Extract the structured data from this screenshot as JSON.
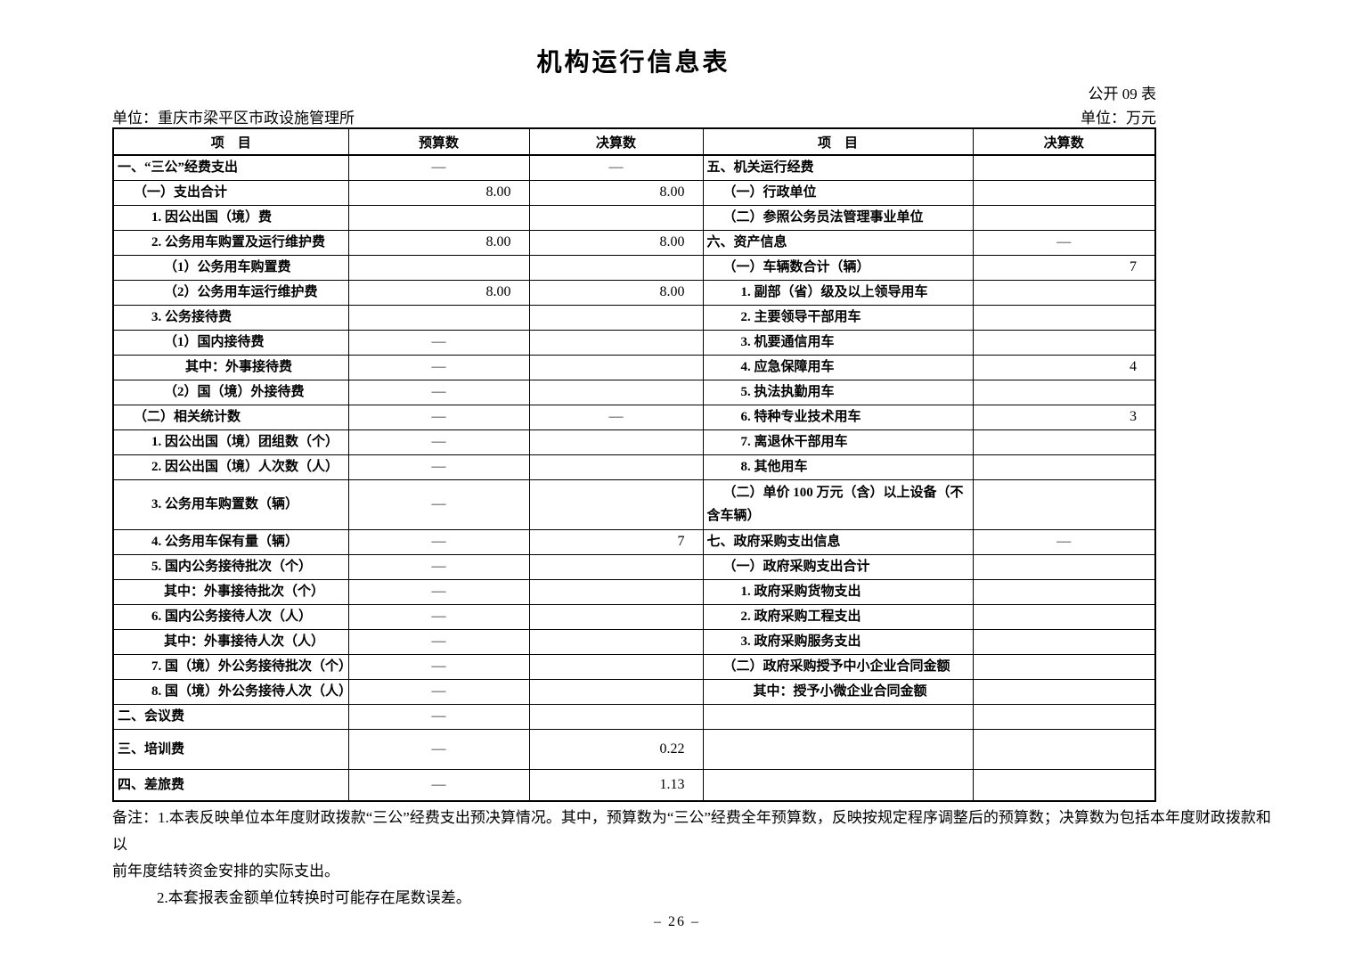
{
  "page": {
    "title": "机构运行信息表",
    "table_code": "公开 09 表",
    "unit_left": "单位：重庆市梁平区市政设施管理所",
    "unit_right": "单位：万元",
    "page_number": "– 26 –"
  },
  "colors": {
    "ink": "#000000",
    "background": "#ffffff",
    "border": "#000000"
  },
  "table": {
    "headers": [
      "项　目",
      "预算数",
      "决算数",
      "项　目",
      "决算数"
    ],
    "rows": [
      {
        "l": "一、“三公”经费支出",
        "li": 0,
        "b": "—",
        "f": "—",
        "r": "五、机关运行经费",
        "ri": 0,
        "rf": ""
      },
      {
        "l": "（一）支出合计",
        "li": 1,
        "b": "8.00",
        "f": "8.00",
        "r": "（一）行政单位",
        "ri": 1,
        "rf": ""
      },
      {
        "l": "1. 因公出国（境）费",
        "li": 2,
        "b": "",
        "f": "",
        "r": "（二）参照公务员法管理事业单位",
        "ri": 1,
        "rf": ""
      },
      {
        "l": "2. 公务用车购置及运行维护费",
        "li": 2,
        "b": "8.00",
        "f": "8.00",
        "r": "六、资产信息",
        "ri": 0,
        "rf": "—"
      },
      {
        "l": "（1）公务用车购置费",
        "li": 3,
        "b": "",
        "f": "",
        "r": "（一）车辆数合计（辆）",
        "ri": 1,
        "rf": "7"
      },
      {
        "l": "（2）公务用车运行维护费",
        "li": 3,
        "b": "8.00",
        "f": "8.00",
        "r": "1. 副部（省）级及以上领导用车",
        "ri": 2,
        "rf": ""
      },
      {
        "l": "3. 公务接待费",
        "li": 2,
        "b": "",
        "f": "",
        "r": "2. 主要领导干部用车",
        "ri": 2,
        "rf": ""
      },
      {
        "l": "（1）国内接待费",
        "li": 3,
        "b": "—",
        "f": "",
        "r": "3. 机要通信用车",
        "ri": 2,
        "rf": ""
      },
      {
        "l": "其中：外事接待费",
        "li": 4,
        "b": "—",
        "f": "",
        "r": "4. 应急保障用车",
        "ri": 2,
        "rf": "4"
      },
      {
        "l": "（2）国（境）外接待费",
        "li": 3,
        "b": "—",
        "f": "",
        "r": "5. 执法执勤用车",
        "ri": 2,
        "rf": ""
      },
      {
        "l": "（二）相关统计数",
        "li": 1,
        "b": "—",
        "f": "—",
        "r": "6. 特种专业技术用车",
        "ri": 2,
        "rf": "3"
      },
      {
        "l": "1. 因公出国（境）团组数（个）",
        "li": 2,
        "b": "—",
        "f": "",
        "r": "7. 离退休干部用车",
        "ri": 2,
        "rf": ""
      },
      {
        "l": "2. 因公出国（境）人次数（人）",
        "li": 2,
        "b": "—",
        "f": "",
        "r": "8. 其他用车",
        "ri": 2,
        "rf": ""
      },
      {
        "l": "3. 公务用车购置数（辆）",
        "li": 2,
        "b": "—",
        "f": "",
        "r": "（二）单价 100 万元（含）以上设备（不含车辆）",
        "ri": 1,
        "rf": ""
      },
      {
        "l": "4. 公务用车保有量（辆）",
        "li": 2,
        "b": "—",
        "f": "7",
        "r": "七、政府采购支出信息",
        "ri": 0,
        "rf": "—"
      },
      {
        "l": "5. 国内公务接待批次（个）",
        "li": 2,
        "b": "—",
        "f": "",
        "r": "（一）政府采购支出合计",
        "ri": 1,
        "rf": ""
      },
      {
        "l": "其中：外事接待批次（个）",
        "li": 3,
        "b": "—",
        "f": "",
        "r": "1. 政府采购货物支出",
        "ri": 2,
        "rf": ""
      },
      {
        "l": "6. 国内公务接待人次（人）",
        "li": 2,
        "b": "—",
        "f": "",
        "r": "2. 政府采购工程支出",
        "ri": 2,
        "rf": ""
      },
      {
        "l": "其中：外事接待人次（人）",
        "li": 3,
        "b": "—",
        "f": "",
        "r": "3. 政府采购服务支出",
        "ri": 2,
        "rf": ""
      },
      {
        "l": "7. 国（境）外公务接待批次（个）",
        "li": 2,
        "b": "—",
        "f": "",
        "r": "（二）政府采购授予中小企业合同金额",
        "ri": 1,
        "rf": ""
      },
      {
        "l": "8. 国（境）外公务接待人次（人）",
        "li": 2,
        "b": "—",
        "f": "",
        "r": "其中：授予小微企业合同金额",
        "ri": 3,
        "rf": ""
      },
      {
        "l": "二、会议费",
        "li": 0,
        "b": "—",
        "f": "",
        "r": "",
        "ri": 0,
        "rf": ""
      },
      {
        "l": "三、培训费",
        "li": 0,
        "b": "—",
        "f": "0.22",
        "r": "",
        "ri": 0,
        "rf": ""
      },
      {
        "l": "四、差旅费",
        "li": 0,
        "b": "—",
        "f": "1.13",
        "r": "",
        "ri": 0,
        "rf": ""
      }
    ]
  },
  "notes": {
    "lines": [
      "备注：1.本表反映单位本年度财政拨款“三公”经费支出预决算情况。其中，预算数为“三公”经费全年预算数，反映按规定程序调整后的预算数；决算数为包括本年度财政拨款和以",
      "前年度结转资金安排的实际支出。",
      "2.本套报表金额单位转换时可能存在尾数误差。"
    ]
  }
}
